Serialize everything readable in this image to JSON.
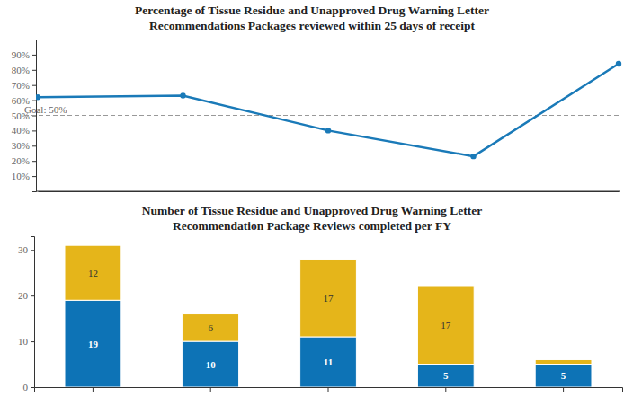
{
  "chart_data": [
    {
      "type": "line",
      "title": "Percentage of Tissue Residue and Unapproved Drug Warning Letter\nRecommendations Packages reviewed within 25 days of receipt",
      "categories": [
        null,
        null,
        null,
        null,
        null
      ],
      "series": [
        {
          "color": "#1a7ab8",
          "marker": "circle",
          "values": [
            62,
            63,
            40,
            23,
            84
          ]
        }
      ],
      "ylim": [
        0,
        100
      ],
      "yticks": [
        {
          "value": 10,
          "label": "10%"
        },
        {
          "value": 20,
          "label": "20%"
        },
        {
          "value": 30,
          "label": "30%"
        },
        {
          "value": 40,
          "label": "40%"
        },
        {
          "value": 50,
          "label": "50%"
        },
        {
          "value": 60,
          "label": "60%"
        },
        {
          "value": 70,
          "label": "70%"
        },
        {
          "value": 80,
          "label": "80%"
        },
        {
          "value": 90,
          "label": "90%"
        }
      ],
      "tick_labels": "y",
      "annotations": [
        {
          "text": "Goal: 50%",
          "y": 50,
          "line_style": "dashed"
        }
      ]
    },
    {
      "type": "bar",
      "title": "Number of Tissue Residue and Unapproved Drug Warning Letter\nRecommendation Package Reviews completed per FY",
      "categories": [
        null,
        null,
        null,
        null,
        null
      ],
      "stacked": true,
      "data_labels": true,
      "series": [
        {
          "color": "#0d73b6",
          "values": [
            19,
            10,
            11,
            5,
            5
          ]
        },
        {
          "color": "#e5b51a",
          "values": [
            12,
            6,
            17,
            17,
            1
          ],
          "value_labels": [
            "12",
            "6",
            "17",
            "17",
            null
          ]
        }
      ],
      "ylim": [
        0,
        33
      ],
      "yticks": [
        0,
        10,
        20,
        30
      ],
      "tick_labels": "y"
    }
  ]
}
